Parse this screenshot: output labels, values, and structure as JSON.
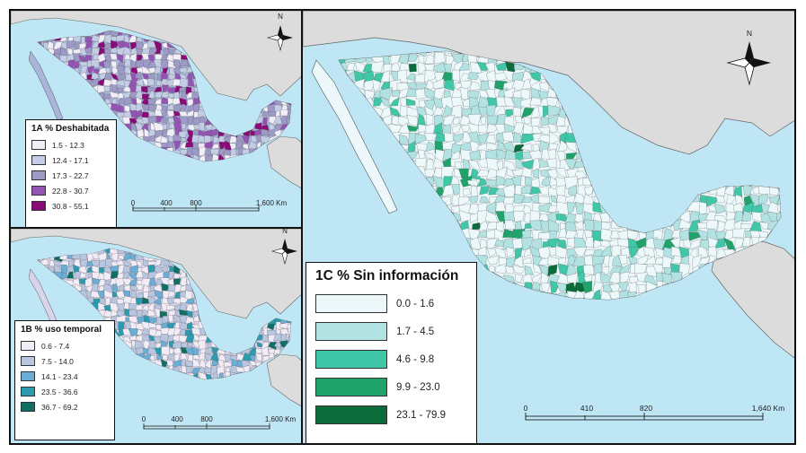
{
  "panels": {
    "a": {
      "legend_title": "1A % Deshabitada",
      "classes": [
        {
          "label": "1.5 - 12.3",
          "color": "#f1eef7"
        },
        {
          "label": "12.4 - 17.1",
          "color": "#c3cde6"
        },
        {
          "label": "17.3 - 22.7",
          "color": "#9e9ac8"
        },
        {
          "label": "22.8 - 30.7",
          "color": "#9554b5"
        },
        {
          "label": "30.8 - 55.1",
          "color": "#8b0a7a"
        }
      ],
      "scale_labels": [
        "0",
        "400",
        "800",
        "1,600 Km"
      ],
      "north_label": "N"
    },
    "b": {
      "legend_title": "1B % uso temporal",
      "classes": [
        {
          "label": "0.6 - 7.4",
          "color": "#f2ecf6"
        },
        {
          "label": "7.5 - 14.0",
          "color": "#b9c6e0"
        },
        {
          "label": "14.1 - 23.4",
          "color": "#6aaed6"
        },
        {
          "label": "23.5 - 36.6",
          "color": "#2b9bb0"
        },
        {
          "label": "36.7 - 69.2",
          "color": "#106e62"
        }
      ],
      "scale_labels": [
        "0",
        "400",
        "800",
        "1,600 Km"
      ],
      "north_label": "N"
    },
    "c": {
      "legend_title": "1C % Sin información",
      "classes": [
        {
          "label": "0.0 - 1.6",
          "color": "#edf8fb"
        },
        {
          "label": "1.7 - 4.5",
          "color": "#b2e2e2"
        },
        {
          "label": "4.6 - 9.8",
          "color": "#40c7a8"
        },
        {
          "label": "9.9 - 23.0",
          "color": "#1fa36b"
        },
        {
          "label": "23.1 - 79.9",
          "color": "#0b6b3a"
        }
      ],
      "scale_labels": [
        "0",
        "410",
        "820",
        "1,640 Km"
      ],
      "north_label": "N"
    }
  },
  "colors": {
    "water": "#bfe6f5",
    "land_other": "#dcdcdc",
    "border": "#555555"
  }
}
